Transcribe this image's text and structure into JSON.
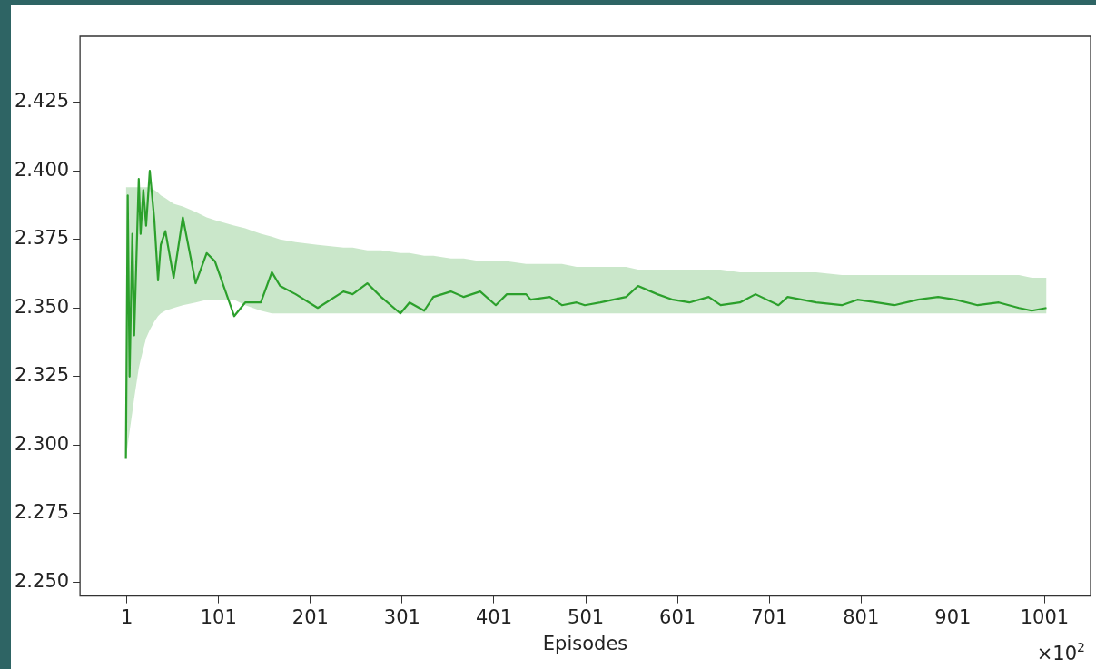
{
  "chart_data": {
    "type": "line",
    "xlabel": "Episodes",
    "annotations": [
      "×10$^{2}$"
    ],
    "xlim": [
      -50,
      1051
    ],
    "xticks": [
      1,
      101,
      201,
      301,
      401,
      501,
      601,
      701,
      801,
      901,
      1001
    ],
    "ylim": [
      2.245,
      2.449
    ],
    "yticks": [
      {
        "value": 2.25,
        "label": "2.250"
      },
      2.275,
      {
        "value": 2.3,
        "label": "2.300"
      },
      2.325,
      {
        "value": 2.35,
        "label": "2.350"
      },
      2.375,
      {
        "value": 2.4,
        "label": "2.400"
      },
      2.425
    ],
    "grid": false,
    "legend": false,
    "marker": "none",
    "line_style": "solid",
    "series": [
      {
        "color": "#2ca02c",
        "x": [
          0,
          2,
          4,
          7,
          9,
          14,
          16,
          19,
          22,
          26,
          31,
          35,
          38,
          43,
          52,
          62,
          76,
          88,
          97,
          118,
          130,
          147,
          159,
          168,
          185,
          209,
          237,
          247,
          263,
          278,
          299,
          309,
          325,
          335,
          354,
          368,
          386,
          403,
          415,
          436,
          441,
          462,
          475,
          491,
          500,
          517,
          545,
          558,
          579,
          596,
          614,
          635,
          648,
          669,
          686,
          711,
          721,
          752,
          780,
          797,
          818,
          837,
          863,
          885,
          904,
          928,
          951,
          973,
          987,
          1003
        ],
        "values": [
          2.295,
          2.391,
          2.325,
          2.377,
          2.34,
          2.397,
          2.377,
          2.393,
          2.38,
          2.4,
          2.382,
          2.36,
          2.373,
          2.378,
          2.361,
          2.383,
          2.359,
          2.37,
          2.367,
          2.347,
          2.352,
          2.352,
          2.363,
          2.358,
          2.355,
          2.35,
          2.356,
          2.355,
          2.359,
          2.354,
          2.348,
          2.352,
          2.349,
          2.354,
          2.356,
          2.354,
          2.356,
          2.351,
          2.355,
          2.355,
          2.353,
          2.354,
          2.351,
          2.352,
          2.351,
          2.352,
          2.354,
          2.358,
          2.355,
          2.353,
          2.352,
          2.354,
          2.351,
          2.352,
          2.355,
          2.351,
          2.354,
          2.352,
          2.351,
          2.353,
          2.352,
          2.351,
          2.353,
          2.354,
          2.353,
          2.351,
          2.352,
          2.35,
          2.349,
          2.35
        ],
        "upper": [
          2.394,
          2.394,
          2.394,
          2.394,
          2.394,
          2.394,
          2.394,
          2.394,
          2.394,
          2.394,
          2.393,
          2.392,
          2.391,
          2.39,
          2.388,
          2.387,
          2.385,
          2.383,
          2.382,
          2.38,
          2.379,
          2.377,
          2.376,
          2.375,
          2.374,
          2.373,
          2.372,
          2.372,
          2.371,
          2.371,
          2.37,
          2.37,
          2.369,
          2.369,
          2.368,
          2.368,
          2.367,
          2.367,
          2.367,
          2.366,
          2.366,
          2.366,
          2.366,
          2.365,
          2.365,
          2.365,
          2.365,
          2.364,
          2.364,
          2.364,
          2.364,
          2.364,
          2.364,
          2.363,
          2.363,
          2.363,
          2.363,
          2.363,
          2.362,
          2.362,
          2.362,
          2.362,
          2.362,
          2.362,
          2.362,
          2.362,
          2.362,
          2.362,
          2.361,
          2.361
        ],
        "lower": [
          2.295,
          2.3,
          2.305,
          2.312,
          2.317,
          2.328,
          2.331,
          2.335,
          2.339,
          2.342,
          2.345,
          2.347,
          2.348,
          2.349,
          2.35,
          2.351,
          2.352,
          2.353,
          2.353,
          2.353,
          2.351,
          2.349,
          2.348,
          2.348,
          2.348,
          2.348,
          2.348,
          2.348,
          2.348,
          2.348,
          2.348,
          2.348,
          2.348,
          2.348,
          2.348,
          2.348,
          2.348,
          2.348,
          2.348,
          2.348,
          2.348,
          2.348,
          2.348,
          2.348,
          2.348,
          2.348,
          2.348,
          2.348,
          2.348,
          2.348,
          2.348,
          2.348,
          2.348,
          2.348,
          2.348,
          2.348,
          2.348,
          2.348,
          2.348,
          2.348,
          2.348,
          2.348,
          2.348,
          2.348,
          2.348,
          2.348,
          2.348,
          2.348,
          2.348,
          2.348
        ]
      }
    ]
  }
}
